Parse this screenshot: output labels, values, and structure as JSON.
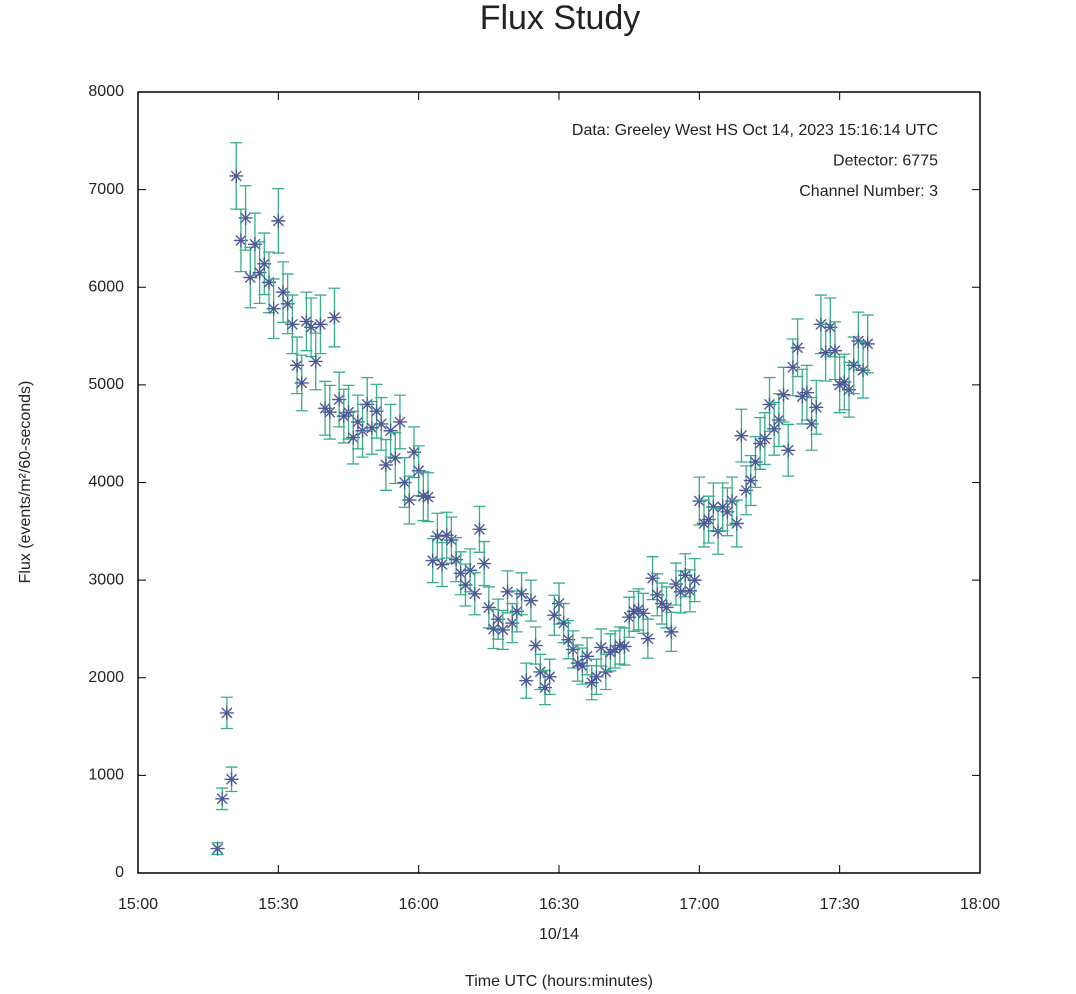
{
  "chart_data": {
    "type": "scatter",
    "title": "Flux Study",
    "annotations": [
      "Data: Greeley West HS Oct 14, 2023 15:16:14 UTC",
      "Detector: 6775",
      "Channel Number: 3"
    ],
    "xlabel": "Time UTC (hours:minutes)",
    "xlabel_date": "10/14",
    "ylabel": "Flux (events/m²/60-seconds)",
    "xlim": [
      "15:00",
      "18:00"
    ],
    "xticks": [
      "15:00",
      "15:30",
      "16:00",
      "16:30",
      "17:00",
      "17:30",
      "18:00"
    ],
    "ylim": [
      0,
      8000
    ],
    "yticks": [
      0,
      1000,
      2000,
      3000,
      4000,
      5000,
      6000,
      7000,
      8000
    ],
    "color": "#4b5a96",
    "error_color": "#3aae8a",
    "x": [
      "15:17",
      "15:18",
      "15:19",
      "15:20",
      "15:21",
      "15:22",
      "15:23",
      "15:24",
      "15:25",
      "15:26",
      "15:27",
      "15:28",
      "15:29",
      "15:30",
      "15:31",
      "15:32",
      "15:33",
      "15:34",
      "15:35",
      "15:36",
      "15:37",
      "15:38",
      "15:39",
      "15:40",
      "15:41",
      "15:42",
      "15:43",
      "15:44",
      "15:45",
      "15:46",
      "15:47",
      "15:48",
      "15:49",
      "15:50",
      "15:51",
      "15:52",
      "15:53",
      "15:54",
      "15:55",
      "15:56",
      "15:57",
      "15:58",
      "15:59",
      "16:00",
      "16:01",
      "16:02",
      "16:03",
      "16:04",
      "16:05",
      "16:06",
      "16:07",
      "16:08",
      "16:09",
      "16:10",
      "16:11",
      "16:12",
      "16:13",
      "16:14",
      "16:15",
      "16:16",
      "16:17",
      "16:18",
      "16:19",
      "16:20",
      "16:21",
      "16:22",
      "16:23",
      "16:24",
      "16:25",
      "16:26",
      "16:27",
      "16:28",
      "16:29",
      "16:30",
      "16:31",
      "16:32",
      "16:33",
      "16:34",
      "16:35",
      "16:36",
      "16:37",
      "16:38",
      "16:39",
      "16:40",
      "16:41",
      "16:42",
      "16:43",
      "16:44",
      "16:45",
      "16:46",
      "16:47",
      "16:48",
      "16:49",
      "16:50",
      "16:51",
      "16:52",
      "16:53",
      "16:54",
      "16:55",
      "16:56",
      "16:57",
      "16:58",
      "16:59",
      "17:00",
      "17:01",
      "17:02",
      "17:03",
      "17:04",
      "17:05",
      "17:06",
      "17:07",
      "17:08",
      "17:09",
      "17:10",
      "17:11",
      "17:12",
      "17:13",
      "17:14",
      "17:15",
      "17:16",
      "17:17",
      "17:18",
      "17:19",
      "17:20",
      "17:21",
      "17:22",
      "17:23",
      "17:24",
      "17:25",
      "17:26",
      "17:27",
      "17:28",
      "17:29",
      "17:30",
      "17:31",
      "17:32",
      "17:33",
      "17:34",
      "17:35",
      "17:36"
    ],
    "values": [
      250,
      760,
      1640,
      960,
      7140,
      6480,
      6710,
      6100,
      6440,
      6150,
      6240,
      6050,
      5780,
      6680,
      5950,
      5830,
      5620,
      5200,
      5020,
      5650,
      5590,
      5240,
      5620,
      4760,
      4720,
      5690,
      4850,
      4680,
      4720,
      4460,
      4620,
      4530,
      4800,
      4560,
      4730,
      4600,
      4180,
      4530,
      4250,
      4620,
      4000,
      3820,
      4310,
      4120,
      3860,
      3850,
      3200,
      3450,
      3160,
      3460,
      3410,
      3210,
      3070,
      2950,
      3100,
      2860,
      3520,
      3170,
      2720,
      2500,
      2600,
      2490,
      2880,
      2560,
      2680,
      2860,
      1970,
      2790,
      2330,
      2060,
      1900,
      2010,
      2640,
      2760,
      2560,
      2390,
      2290,
      2150,
      2120,
      2220,
      1950,
      2010,
      2310,
      2060,
      2260,
      2290,
      2330,
      2320,
      2620,
      2680,
      2700,
      2660,
      2400,
      3020,
      2850,
      2760,
      2720,
      2470,
      2960,
      2880,
      3050,
      2890,
      3000,
      3810,
      3580,
      3620,
      3750,
      3500,
      3750,
      3700,
      3810,
      3580,
      4480,
      3920,
      4020,
      4210,
      4400,
      4450,
      4800,
      4550,
      4640,
      4900,
      4330,
      5180,
      5380,
      4880,
      4920,
      4600,
      4770,
      5620,
      5330,
      5590,
      5350,
      5000,
      5030,
      4950,
      5200,
      5450,
      5150,
      5420
    ],
    "errors": [
      60,
      110,
      160,
      125,
      340,
      320,
      330,
      310,
      320,
      315,
      315,
      310,
      305,
      330,
      310,
      305,
      300,
      290,
      285,
      300,
      300,
      290,
      300,
      275,
      275,
      300,
      280,
      275,
      275,
      270,
      275,
      270,
      275,
      270,
      275,
      270,
      260,
      270,
      260,
      275,
      255,
      245,
      260,
      255,
      250,
      250,
      225,
      235,
      225,
      235,
      235,
      225,
      220,
      215,
      220,
      215,
      235,
      225,
      210,
      200,
      205,
      200,
      215,
      200,
      210,
      215,
      180,
      210,
      190,
      180,
      175,
      180,
      205,
      210,
      200,
      195,
      190,
      185,
      185,
      190,
      175,
      180,
      190,
      180,
      190,
      190,
      190,
      190,
      205,
      205,
      210,
      205,
      200,
      220,
      215,
      210,
      210,
      200,
      215,
      215,
      220,
      215,
      220,
      245,
      240,
      240,
      245,
      235,
      245,
      245,
      245,
      240,
      270,
      250,
      255,
      260,
      265,
      265,
      275,
      270,
      270,
      280,
      265,
      290,
      295,
      280,
      280,
      270,
      275,
      300,
      290,
      300,
      295,
      285,
      285,
      280,
      290,
      295,
      285,
      295
    ]
  }
}
